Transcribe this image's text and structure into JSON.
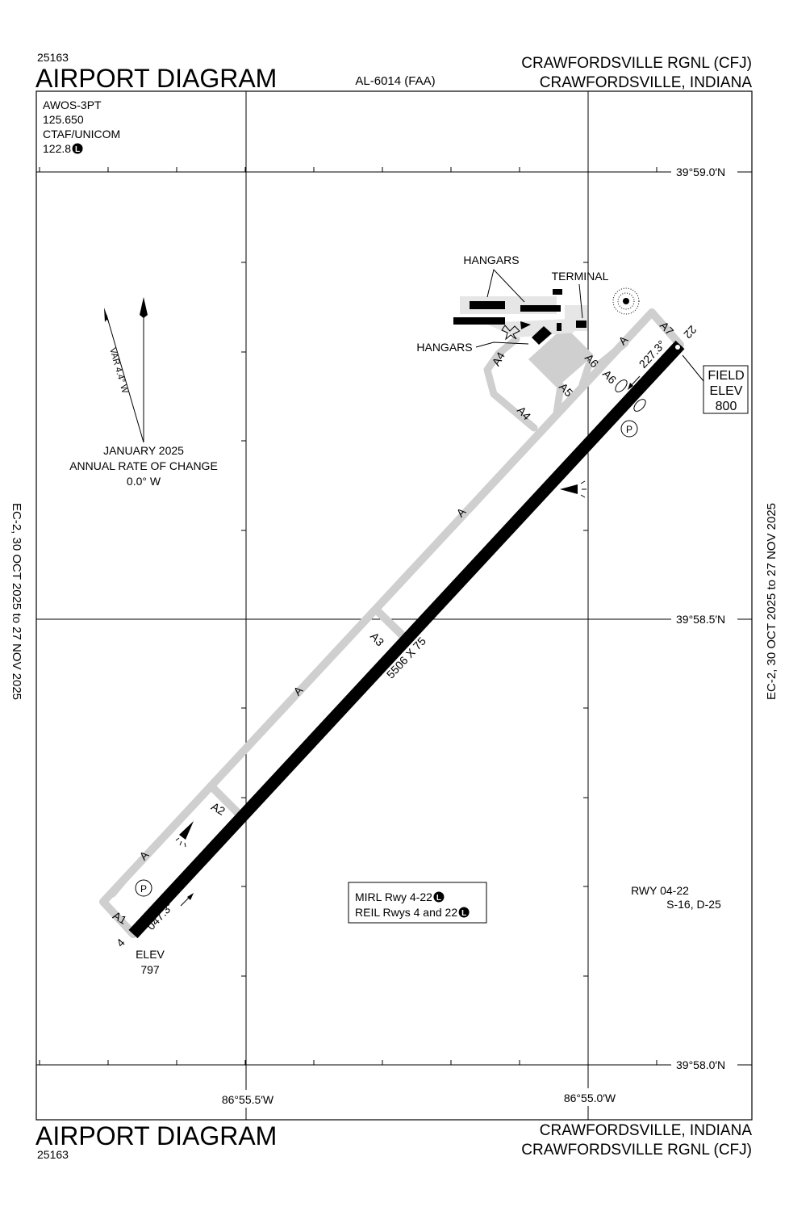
{
  "header": {
    "procedure_number": "25163",
    "title": "AIRPORT DIAGRAM",
    "chart_id": "AL-6014 (FAA)",
    "airport": "CRAWFORDSVILLE RGNL (CFJ)",
    "location": "CRAWFORDSVILLE, INDIANA"
  },
  "footer": {
    "title": "AIRPORT DIAGRAM",
    "procedure_number": "25163",
    "location": "CRAWFORDSVILLE, INDIANA",
    "airport": "CRAWFORDSVILLE RGNL (CFJ)"
  },
  "side_note": "EC-2,  30 OCT 2025  to  27 NOV 2025",
  "communications": [
    "AWOS-3PT",
    "125.650",
    "CTAF/UNICOM",
    "122.8"
  ],
  "lighting_symbol": "L",
  "parking_symbol": "P",
  "latitudes": [
    "39°59.0′N",
    "39°58.5′N",
    "39°58.0′N"
  ],
  "longitudes": [
    "86°55.5′W",
    "86°55.0′W"
  ],
  "variation": {
    "label": "VAR 4.4° W",
    "epoch": "JANUARY 2025",
    "rate_title": "ANNUAL RATE OF CHANGE",
    "rate": "0.0° W"
  },
  "runway": {
    "dimensions": "5506 X 75",
    "end_22": "22",
    "end_4": "4",
    "heading_22": "227.3°",
    "heading_4": "047.3°",
    "elev_4_label": "ELEV",
    "elev_4": "797"
  },
  "field_elevation": [
    "FIELD",
    "ELEV",
    "800"
  ],
  "buildings": {
    "hangars": "HANGARS",
    "terminal": "TERMINAL"
  },
  "taxiways": [
    "A",
    "A7",
    "A6",
    "A6",
    "A5",
    "A4",
    "A4",
    "A",
    "A3",
    "A",
    "A2",
    "A",
    "A1"
  ],
  "lighting_notes": [
    "MIRL Rwy 4-22",
    "REIL Rwys 4 and 22"
  ],
  "runway_strength": {
    "runway": "RWY 04-22",
    "strength": "S-16, D-25"
  }
}
